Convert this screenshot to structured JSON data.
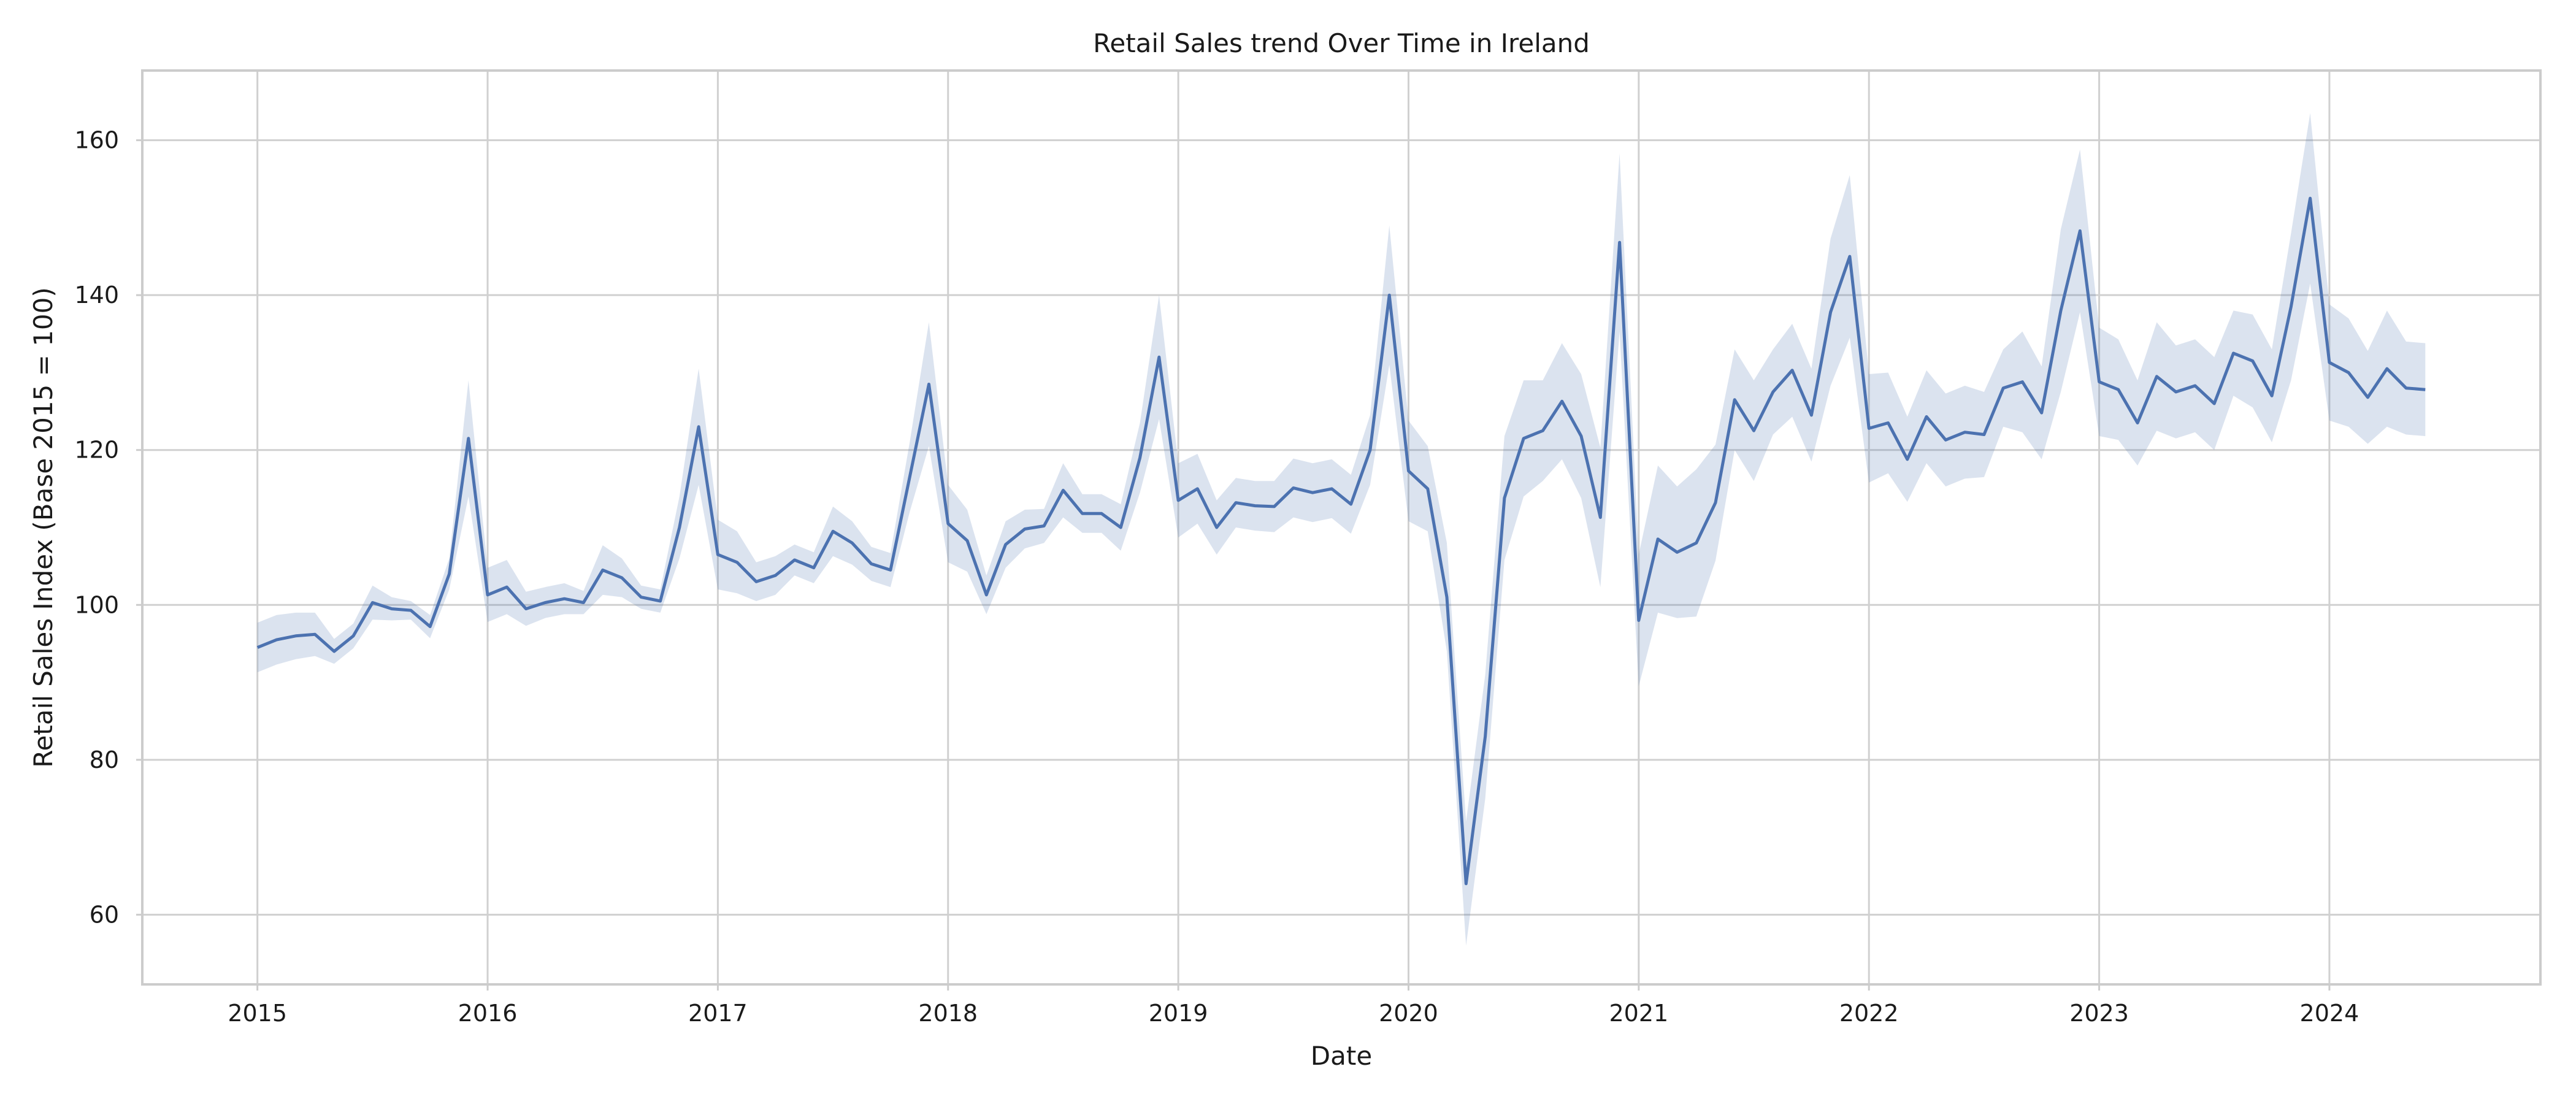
{
  "chart_data": {
    "type": "line",
    "title": "Retail Sales trend Over Time in Ireland",
    "xlabel": "Date",
    "ylabel": "Retail Sales Index (Base 2015 = 100)",
    "x_start": "2015-01",
    "x_frequency": "monthly",
    "xlim": [
      "2014-07",
      "2024-12"
    ],
    "ylim": [
      51,
      169
    ],
    "x_ticks": [
      "2015",
      "2016",
      "2017",
      "2018",
      "2019",
      "2020",
      "2021",
      "2022",
      "2023",
      "2024"
    ],
    "y_ticks": [
      60,
      80,
      100,
      120,
      140,
      160
    ],
    "grid": true,
    "legend": "none",
    "series": [
      {
        "color": "#4c72b0",
        "band_color": "#4c72b0",
        "values": [
          94.5,
          95.5,
          96.0,
          96.2,
          94.0,
          96.0,
          100.3,
          99.5,
          99.3,
          97.2,
          104.0,
          121.5,
          101.3,
          102.3,
          99.5,
          100.3,
          100.8,
          100.3,
          104.5,
          103.5,
          101.0,
          100.5,
          110.0,
          123.0,
          106.5,
          105.5,
          103.0,
          103.8,
          105.8,
          104.8,
          109.5,
          108.0,
          105.3,
          104.5,
          116.5,
          128.5,
          110.5,
          108.3,
          101.3,
          107.8,
          109.8,
          110.2,
          114.8,
          111.8,
          111.8,
          110.0,
          119.0,
          132.0,
          113.5,
          115.0,
          110.0,
          113.2,
          112.8,
          112.7,
          115.1,
          114.5,
          115.0,
          113.0,
          120.0,
          140.0,
          117.3,
          115.0,
          101.0,
          64.0,
          83.0,
          113.8,
          121.5,
          122.5,
          126.3,
          121.8,
          111.3,
          146.8,
          98.0,
          108.5,
          106.8,
          108.0,
          113.2,
          126.5,
          122.5,
          127.5,
          130.3,
          124.5,
          137.8,
          145.0,
          122.8,
          123.5,
          118.8,
          124.3,
          121.3,
          122.3,
          122.0,
          128.0,
          128.8,
          124.8,
          138.0,
          148.3,
          128.8,
          127.8,
          123.5,
          129.5,
          127.5,
          128.3,
          126.0,
          132.5,
          131.5,
          127.0,
          138.5,
          152.5,
          131.3,
          130.0,
          126.8,
          130.5,
          128.0,
          127.8
        ],
        "band_halfwidth": [
          3.2,
          3.2,
          3.0,
          2.8,
          1.6,
          1.6,
          2.2,
          1.5,
          1.2,
          1.5,
          2.0,
          7.5,
          3.5,
          3.5,
          2.2,
          2.0,
          2.0,
          1.5,
          3.2,
          2.5,
          1.5,
          1.5,
          4.0,
          7.5,
          4.5,
          4.0,
          2.5,
          2.5,
          2.0,
          2.0,
          3.2,
          2.8,
          2.2,
          2.2,
          4.5,
          8.0,
          5.0,
          4.0,
          2.5,
          3.0,
          2.5,
          2.2,
          3.5,
          2.5,
          2.5,
          3.0,
          4.5,
          8.0,
          4.8,
          4.5,
          3.5,
          3.2,
          3.2,
          3.3,
          3.8,
          3.8,
          3.8,
          3.8,
          4.5,
          9.0,
          6.5,
          5.5,
          7.0,
          8.0,
          8.0,
          8.0,
          7.5,
          6.5,
          7.5,
          8.0,
          9.0,
          11.5,
          8.5,
          9.5,
          8.5,
          9.5,
          7.5,
          6.5,
          6.5,
          5.5,
          6.0,
          6.0,
          9.5,
          10.5,
          7.0,
          6.5,
          5.5,
          6.0,
          6.0,
          6.0,
          5.5,
          5.0,
          6.5,
          6.0,
          10.5,
          10.5,
          7.0,
          6.5,
          5.5,
          7.0,
          6.0,
          6.0,
          6.0,
          5.5,
          6.0,
          6.0,
          9.5,
          11.0,
          7.5,
          7.0,
          6.0,
          7.5,
          6.0,
          6.0
        ]
      }
    ]
  }
}
